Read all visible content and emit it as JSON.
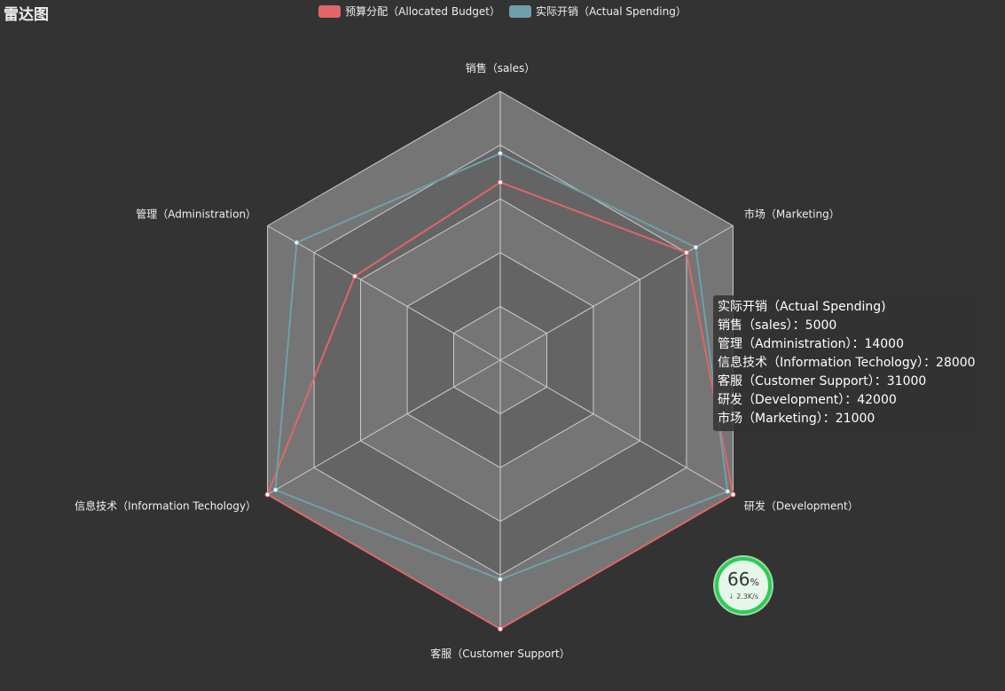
{
  "title": "雷达图",
  "colors": {
    "background": "#333333",
    "grid_line": "#cccccc",
    "band_light": "#757575",
    "band_dark": "#646464",
    "budget": "#e06666",
    "spending": "#6fa0aa",
    "point_fill": "#ffffff"
  },
  "chart_data": {
    "type": "radar",
    "indicators": [
      {
        "name": "销售（sales）",
        "max": 6500
      },
      {
        "name": "市场（Marketing）",
        "max": 25000
      },
      {
        "name": "研发（Development）",
        "max": 43000
      },
      {
        "name": "客服（Customer Support）",
        "max": 38000
      },
      {
        "name": "信息技术（Information Techology）",
        "max": 29000
      },
      {
        "name": "管理（Administration）",
        "max": 16000
      }
    ],
    "series": [
      {
        "name": "预算分配（Allocated Budget）",
        "values": [
          4300,
          20000,
          43000,
          38000,
          29000,
          10000
        ]
      },
      {
        "name": "实际开销（Actual Spending）",
        "values": [
          5000,
          21000,
          42000,
          31000,
          28000,
          14000
        ]
      }
    ],
    "split_number": 5,
    "legend_position": "top-center"
  },
  "tooltip": {
    "title": "实际开销（Actual Spending)",
    "lines": [
      "销售（sales）：5000",
      "管理（Administration）：14000",
      "信息技术（Information Techology）：28000",
      "客服（Customer Support）：31000",
      "研发（Development）：42000",
      "市场（Marketing）：21000"
    ]
  },
  "monitor": {
    "percent": "66",
    "percent_unit": "%",
    "speed": "2.3K/s",
    "arrow": "↓"
  }
}
